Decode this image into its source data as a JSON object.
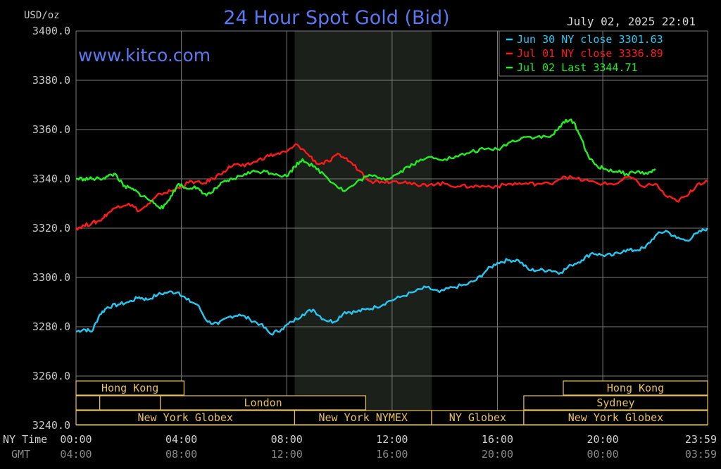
{
  "chart_data": {
    "type": "line",
    "title": "24 Hour Spot Gold (Bid)",
    "site": "www.kitco.com",
    "timestamp": "July 02, 2025 22:01",
    "unit_label": "USD/oz",
    "ylim": [
      3240,
      3400
    ],
    "y_ticks": [
      "3400.0",
      "3380.0",
      "3360.0",
      "3340.0",
      "3320.0",
      "3300.0",
      "3280.0",
      "3260.0",
      "3240.0"
    ],
    "x_row_labels": [
      "NY Time",
      "GMT"
    ],
    "x_ticks_ny": [
      "00:00",
      "04:00",
      "08:00",
      "12:00",
      "16:00",
      "20:00",
      "23:59"
    ],
    "x_ticks_gmt": [
      "04:00",
      "08:00",
      "12:00",
      "16:00",
      "20:00",
      "00:00",
      "03:59"
    ],
    "grid": true,
    "legend_position": "top-right",
    "colors": {
      "background": "#000000",
      "grid": "#7a7a7a",
      "shade": "#1b201b",
      "Jun 30": "#25c8f2",
      "Jul 01": "#ff1a1a",
      "Jul 02": "#22ee22",
      "session": "#e8c25a",
      "title": "#5b78f0"
    },
    "shaded_hours": [
      8.3,
      13.5
    ],
    "series": [
      {
        "name": "Jun 30 NY close 3301.63",
        "color": "#25c8f2",
        "x": [
          0,
          0.3,
          0.6,
          0.9,
          1.2,
          1.6,
          2.0,
          2.4,
          2.7,
          3.1,
          3.5,
          3.9,
          4.2,
          4.6,
          5.0,
          5.4,
          5.8,
          6.2,
          6.6,
          7.0,
          7.4,
          7.8,
          8.2,
          8.6,
          9.0,
          9.4,
          9.8,
          10.2,
          10.6,
          11.0,
          11.4,
          11.8,
          12.3,
          12.8,
          13.3,
          13.8,
          14.3,
          14.8,
          15.2,
          15.6,
          16.0,
          16.4,
          16.8,
          17.2,
          17.6,
          18.0,
          18.4,
          18.8,
          19.2,
          19.6,
          20.0,
          20.4,
          20.8,
          21.2,
          21.6,
          22.0,
          22.4,
          22.8,
          23.2,
          23.6,
          23.98
        ],
        "y": [
          3278,
          3279,
          3278,
          3285,
          3288,
          3289,
          3290,
          3292,
          3291,
          3293,
          3294,
          3294,
          3291,
          3289,
          3282,
          3281,
          3284,
          3285,
          3283,
          3281,
          3277,
          3279,
          3282,
          3285,
          3287,
          3283,
          3282,
          3286,
          3286,
          3287,
          3288,
          3290,
          3292,
          3294,
          3296,
          3294,
          3296,
          3297,
          3299,
          3303,
          3306,
          3307,
          3307,
          3303,
          3303,
          3303,
          3302,
          3305,
          3307,
          3310,
          3309,
          3309,
          3311,
          3311,
          3312,
          3317,
          3319,
          3316,
          3315,
          3318,
          3320
        ]
      },
      {
        "name": "Jul 01 NY close 3336.89",
        "color": "#ff1a1a",
        "x": [
          0,
          0.3,
          0.6,
          0.9,
          1.2,
          1.6,
          2.0,
          2.4,
          2.8,
          3.2,
          3.6,
          4.0,
          4.4,
          4.8,
          5.2,
          5.6,
          6.0,
          6.4,
          6.8,
          7.2,
          7.6,
          8.0,
          8.4,
          8.8,
          9.2,
          9.6,
          10.0,
          10.4,
          10.8,
          11.2,
          11.6,
          12.0,
          12.5,
          13.0,
          13.5,
          14.0,
          14.5,
          15.0,
          15.5,
          16.0,
          16.5,
          17.0,
          17.5,
          18.0,
          18.5,
          19.0,
          19.5,
          20.0,
          20.5,
          21.0,
          21.5,
          22.0,
          22.4,
          22.8,
          23.2,
          23.6,
          23.98
        ],
        "y": [
          3320,
          3321,
          3322,
          3323,
          3326,
          3329,
          3330,
          3327,
          3330,
          3334,
          3335,
          3337,
          3339,
          3338,
          3340,
          3343,
          3346,
          3345,
          3347,
          3349,
          3350,
          3351,
          3354,
          3350,
          3346,
          3347,
          3350,
          3347,
          3343,
          3339,
          3339,
          3339,
          3339,
          3337,
          3338,
          3338,
          3337,
          3337,
          3337,
          3337,
          3338,
          3338,
          3338,
          3338,
          3341,
          3340,
          3339,
          3338,
          3338,
          3341,
          3337,
          3338,
          3333,
          3331,
          3333,
          3338,
          3339
        ]
      },
      {
        "name": "Jul 02 Last 3344.71",
        "color": "#22ee22",
        "x": [
          0,
          0.3,
          0.6,
          0.9,
          1.2,
          1.5,
          1.8,
          2.1,
          2.4,
          2.7,
          3.0,
          3.3,
          3.6,
          3.9,
          4.2,
          4.5,
          4.8,
          5.1,
          5.4,
          5.7,
          6.0,
          6.4,
          6.8,
          7.2,
          7.6,
          8.0,
          8.3,
          8.6,
          9.0,
          9.4,
          9.8,
          10.2,
          10.6,
          11.0,
          11.4,
          11.8,
          12.2,
          12.6,
          13.0,
          13.5,
          14.0,
          14.5,
          15.0,
          15.5,
          16.0,
          16.5,
          17.0,
          17.5,
          18.0,
          18.3,
          18.6,
          18.9,
          19.2,
          19.5,
          19.8,
          20.1,
          20.5,
          20.9,
          21.3,
          21.7,
          22.0
        ],
        "y": [
          3340,
          3340,
          3340,
          3340,
          3341,
          3342,
          3337,
          3336,
          3334,
          3332,
          3330,
          3328,
          3333,
          3338,
          3336,
          3337,
          3334,
          3334,
          3337,
          3339,
          3340,
          3342,
          3343,
          3343,
          3342,
          3341,
          3345,
          3348,
          3345,
          3342,
          3338,
          3335,
          3338,
          3341,
          3341,
          3340,
          3342,
          3345,
          3347,
          3349,
          3348,
          3349,
          3351,
          3352,
          3352,
          3355,
          3357,
          3357,
          3357,
          3360,
          3364,
          3363,
          3356,
          3348,
          3345,
          3344,
          3343,
          3342,
          3343,
          3342,
          3344
        ]
      }
    ],
    "sessions": [
      {
        "row": 0,
        "label": "Hong Kong",
        "start": 0,
        "end": 4.1
      },
      {
        "row": 0,
        "label": "Hong Kong",
        "start": 18.5,
        "end": 23.98
      },
      {
        "row": 1,
        "label": "",
        "start": 0,
        "end": 0.9
      },
      {
        "row": 1,
        "label": "",
        "start": 0.9,
        "end": 3.2
      },
      {
        "row": 1,
        "label": "London",
        "start": 3.2,
        "end": 11.0
      },
      {
        "row": 1,
        "label": "Sydney",
        "start": 17.0,
        "end": 23.98
      },
      {
        "row": 2,
        "label": "New York Globex",
        "start": 0,
        "end": 8.3
      },
      {
        "row": 2,
        "label": "New York NYMEX",
        "start": 8.3,
        "end": 13.5
      },
      {
        "row": 2,
        "label": "NY Globex",
        "start": 13.5,
        "end": 17.0
      },
      {
        "row": 2,
        "label": "New York Globex",
        "start": 17.0,
        "end": 23.98
      }
    ]
  }
}
